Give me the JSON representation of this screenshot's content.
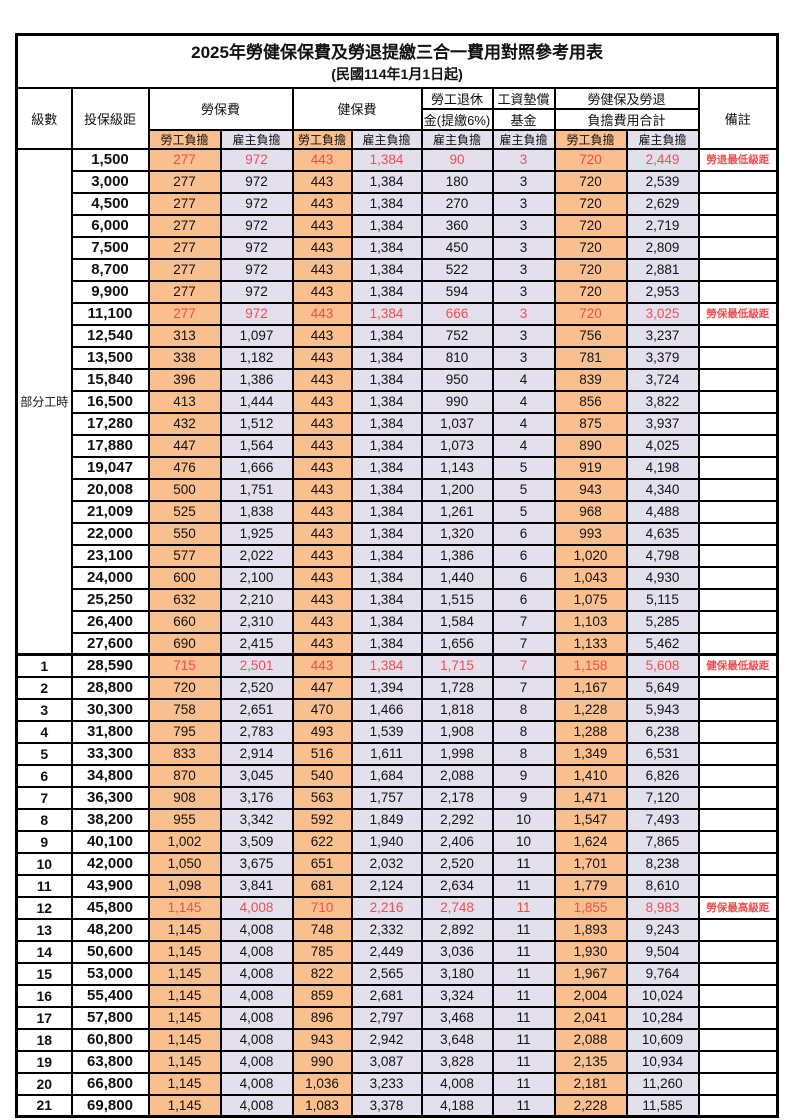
{
  "title": "2025年勞健保保費及勞退提繳三合一費用對照參考用表",
  "subtitle": "(民國114年1月1日起)",
  "header": {
    "level": "級數",
    "bracket": "投保級距",
    "labor_ins": "勞保費",
    "health_ins": "健保費",
    "pension_line1": "勞工退休",
    "pension_line2": "金(提繳6%)",
    "fund_line1": "工資墊償",
    "fund_line2": "基金",
    "total_line1": "勞健保及勞退",
    "total_line2": "負擔費用合計",
    "remark": "備註",
    "employee": "勞工負擔",
    "employer": "雇主負擔"
  },
  "part_time": {
    "label": "部分工時",
    "row_span": 23
  },
  "colors": {
    "employee_col_bg": "#FABF8F",
    "employer_col_bg": "#E4DFEC",
    "highlight_text": "#F04E4E",
    "border": "#000000"
  },
  "columns": [
    "level",
    "bracket",
    "labor_employee",
    "labor_employer",
    "health_employee",
    "health_employer",
    "pension_employer",
    "fund_employer",
    "total_employee",
    "total_employer",
    "remark"
  ],
  "red_rows": [
    0,
    7,
    23,
    34
  ],
  "section_start_row": 23,
  "rows": [
    [
      "",
      "1,500",
      "277",
      "972",
      "443",
      "1,384",
      "90",
      "3",
      "720",
      "2,449",
      "勞退最低級距"
    ],
    [
      "",
      "3,000",
      "277",
      "972",
      "443",
      "1,384",
      "180",
      "3",
      "720",
      "2,539",
      ""
    ],
    [
      "",
      "4,500",
      "277",
      "972",
      "443",
      "1,384",
      "270",
      "3",
      "720",
      "2,629",
      ""
    ],
    [
      "",
      "6,000",
      "277",
      "972",
      "443",
      "1,384",
      "360",
      "3",
      "720",
      "2,719",
      ""
    ],
    [
      "",
      "7,500",
      "277",
      "972",
      "443",
      "1,384",
      "450",
      "3",
      "720",
      "2,809",
      ""
    ],
    [
      "",
      "8,700",
      "277",
      "972",
      "443",
      "1,384",
      "522",
      "3",
      "720",
      "2,881",
      ""
    ],
    [
      "",
      "9,900",
      "277",
      "972",
      "443",
      "1,384",
      "594",
      "3",
      "720",
      "2,953",
      ""
    ],
    [
      "",
      "11,100",
      "277",
      "972",
      "443",
      "1,384",
      "666",
      "3",
      "720",
      "3,025",
      "勞保最低級距"
    ],
    [
      "",
      "12,540",
      "313",
      "1,097",
      "443",
      "1,384",
      "752",
      "3",
      "756",
      "3,237",
      ""
    ],
    [
      "",
      "13,500",
      "338",
      "1,182",
      "443",
      "1,384",
      "810",
      "3",
      "781",
      "3,379",
      ""
    ],
    [
      "",
      "15,840",
      "396",
      "1,386",
      "443",
      "1,384",
      "950",
      "4",
      "839",
      "3,724",
      ""
    ],
    [
      "",
      "16,500",
      "413",
      "1,444",
      "443",
      "1,384",
      "990",
      "4",
      "856",
      "3,822",
      ""
    ],
    [
      "",
      "17,280",
      "432",
      "1,512",
      "443",
      "1,384",
      "1,037",
      "4",
      "875",
      "3,937",
      ""
    ],
    [
      "",
      "17,880",
      "447",
      "1,564",
      "443",
      "1,384",
      "1,073",
      "4",
      "890",
      "4,025",
      ""
    ],
    [
      "",
      "19,047",
      "476",
      "1,666",
      "443",
      "1,384",
      "1,143",
      "5",
      "919",
      "4,198",
      ""
    ],
    [
      "",
      "20,008",
      "500",
      "1,751",
      "443",
      "1,384",
      "1,200",
      "5",
      "943",
      "4,340",
      ""
    ],
    [
      "",
      "21,009",
      "525",
      "1,838",
      "443",
      "1,384",
      "1,261",
      "5",
      "968",
      "4,488",
      ""
    ],
    [
      "",
      "22,000",
      "550",
      "1,925",
      "443",
      "1,384",
      "1,320",
      "6",
      "993",
      "4,635",
      ""
    ],
    [
      "",
      "23,100",
      "577",
      "2,022",
      "443",
      "1,384",
      "1,386",
      "6",
      "1,020",
      "4,798",
      ""
    ],
    [
      "",
      "24,000",
      "600",
      "2,100",
      "443",
      "1,384",
      "1,440",
      "6",
      "1,043",
      "4,930",
      ""
    ],
    [
      "",
      "25,250",
      "632",
      "2,210",
      "443",
      "1,384",
      "1,515",
      "6",
      "1,075",
      "5,115",
      ""
    ],
    [
      "",
      "26,400",
      "660",
      "2,310",
      "443",
      "1,384",
      "1,584",
      "7",
      "1,103",
      "5,285",
      ""
    ],
    [
      "",
      "27,600",
      "690",
      "2,415",
      "443",
      "1,384",
      "1,656",
      "7",
      "1,133",
      "5,462",
      ""
    ],
    [
      "1",
      "28,590",
      "715",
      "2,501",
      "443",
      "1,384",
      "1,715",
      "7",
      "1,158",
      "5,608",
      "健保最低級距"
    ],
    [
      "2",
      "28,800",
      "720",
      "2,520",
      "447",
      "1,394",
      "1,728",
      "7",
      "1,167",
      "5,649",
      ""
    ],
    [
      "3",
      "30,300",
      "758",
      "2,651",
      "470",
      "1,466",
      "1,818",
      "8",
      "1,228",
      "5,943",
      ""
    ],
    [
      "4",
      "31,800",
      "795",
      "2,783",
      "493",
      "1,539",
      "1,908",
      "8",
      "1,288",
      "6,238",
      ""
    ],
    [
      "5",
      "33,300",
      "833",
      "2,914",
      "516",
      "1,611",
      "1,998",
      "8",
      "1,349",
      "6,531",
      ""
    ],
    [
      "6",
      "34,800",
      "870",
      "3,045",
      "540",
      "1,684",
      "2,088",
      "9",
      "1,410",
      "6,826",
      ""
    ],
    [
      "7",
      "36,300",
      "908",
      "3,176",
      "563",
      "1,757",
      "2,178",
      "9",
      "1,471",
      "7,120",
      ""
    ],
    [
      "8",
      "38,200",
      "955",
      "3,342",
      "592",
      "1,849",
      "2,292",
      "10",
      "1,547",
      "7,493",
      ""
    ],
    [
      "9",
      "40,100",
      "1,002",
      "3,509",
      "622",
      "1,940",
      "2,406",
      "10",
      "1,624",
      "7,865",
      ""
    ],
    [
      "10",
      "42,000",
      "1,050",
      "3,675",
      "651",
      "2,032",
      "2,520",
      "11",
      "1,701",
      "8,238",
      ""
    ],
    [
      "11",
      "43,900",
      "1,098",
      "3,841",
      "681",
      "2,124",
      "2,634",
      "11",
      "1,779",
      "8,610",
      ""
    ],
    [
      "12",
      "45,800",
      "1,145",
      "4,008",
      "710",
      "2,216",
      "2,748",
      "11",
      "1,855",
      "8,983",
      "勞保最高級距"
    ],
    [
      "13",
      "48,200",
      "1,145",
      "4,008",
      "748",
      "2,332",
      "2,892",
      "11",
      "1,893",
      "9,243",
      ""
    ],
    [
      "14",
      "50,600",
      "1,145",
      "4,008",
      "785",
      "2,449",
      "3,036",
      "11",
      "1,930",
      "9,504",
      ""
    ],
    [
      "15",
      "53,000",
      "1,145",
      "4,008",
      "822",
      "2,565",
      "3,180",
      "11",
      "1,967",
      "9,764",
      ""
    ],
    [
      "16",
      "55,400",
      "1,145",
      "4,008",
      "859",
      "2,681",
      "3,324",
      "11",
      "2,004",
      "10,024",
      ""
    ],
    [
      "17",
      "57,800",
      "1,145",
      "4,008",
      "896",
      "2,797",
      "3,468",
      "11",
      "2,041",
      "10,284",
      ""
    ],
    [
      "18",
      "60,800",
      "1,145",
      "4,008",
      "943",
      "2,942",
      "3,648",
      "11",
      "2,088",
      "10,609",
      ""
    ],
    [
      "19",
      "63,800",
      "1,145",
      "4,008",
      "990",
      "3,087",
      "3,828",
      "11",
      "2,135",
      "10,934",
      ""
    ],
    [
      "20",
      "66,800",
      "1,145",
      "4,008",
      "1,036",
      "3,233",
      "4,008",
      "11",
      "2,181",
      "11,260",
      ""
    ],
    [
      "21",
      "69,800",
      "1,145",
      "4,008",
      "1,083",
      "3,378",
      "4,188",
      "11",
      "2,228",
      "11,585",
      ""
    ]
  ]
}
